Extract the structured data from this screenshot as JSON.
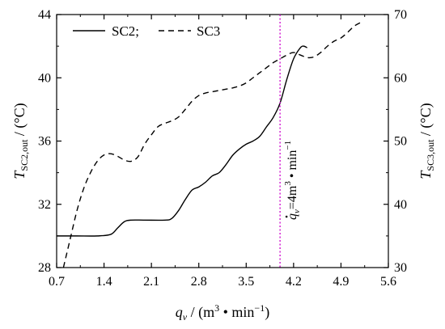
{
  "chart_data": {
    "type": "line",
    "x_ticks": [
      0.7,
      1.4,
      2.1,
      2.8,
      3.5,
      4.2,
      4.9,
      5.6
    ],
    "x_tick_labels": [
      "0.7",
      "1.4",
      "2.1",
      "2.8",
      "3.5",
      "4.2",
      "4.9",
      "5.6"
    ],
    "y_left_ticks": [
      28,
      32,
      36,
      40,
      44
    ],
    "y_left_tick_labels": [
      "28",
      "32",
      "36",
      "40",
      "44"
    ],
    "y_right_ticks": [
      30,
      40,
      50,
      60,
      70
    ],
    "y_right_tick_labels": [
      "30",
      "40",
      "50",
      "60",
      "70"
    ],
    "xlim": [
      0.7,
      5.6
    ],
    "ylim_left": [
      28,
      44
    ],
    "ylim_right": [
      30,
      70
    ],
    "grid": false,
    "legend_position": "top-left",
    "xlabel": {
      "var": "q",
      "sub": "v",
      "text": " / (m",
      "sup": "3",
      "text2": " • min",
      "sup2": "−1",
      "text3": ")"
    },
    "ylabel_left": {
      "var": "T",
      "sub": "SC2,out",
      "text": " / (°C)"
    },
    "ylabel_right": {
      "var": "T",
      "sub": "SC3,out",
      "text": " / (°C)"
    },
    "series": [
      {
        "name": "SC2;",
        "axis": "left",
        "style": "solid",
        "x": [
          0.7,
          1.0,
          1.3,
          1.5,
          1.6,
          1.7,
          1.8,
          2.0,
          2.3,
          2.4,
          2.5,
          2.6,
          2.7,
          2.8,
          2.9,
          3.0,
          3.1,
          3.2,
          3.3,
          3.4,
          3.5,
          3.6,
          3.7,
          3.8,
          3.9,
          4.0,
          4.1,
          4.2,
          4.3,
          4.35,
          4.4
        ],
        "y": [
          30.0,
          30.0,
          30.0,
          30.1,
          30.5,
          30.9,
          31.0,
          31.0,
          31.0,
          31.1,
          31.6,
          32.3,
          32.9,
          33.1,
          33.4,
          33.8,
          34.0,
          34.5,
          35.1,
          35.5,
          35.8,
          36.0,
          36.3,
          36.9,
          37.5,
          38.4,
          39.9,
          41.2,
          41.9,
          42.0,
          41.9
        ]
      },
      {
        "name": "SC3",
        "axis": "right",
        "style": "dashed",
        "x": [
          0.8,
          0.9,
          1.0,
          1.1,
          1.2,
          1.3,
          1.4,
          1.5,
          1.6,
          1.7,
          1.8,
          1.9,
          2.0,
          2.1,
          2.2,
          2.3,
          2.4,
          2.5,
          2.6,
          2.7,
          2.8,
          2.9,
          3.0,
          3.1,
          3.2,
          3.3,
          3.4,
          3.5,
          3.6,
          3.7,
          3.8,
          3.9,
          4.0,
          4.1,
          4.2,
          4.3,
          4.4,
          4.5,
          4.6,
          4.7,
          4.8,
          4.9,
          5.0,
          5.1,
          5.2
        ],
        "y": [
          30.0,
          34.5,
          39.0,
          42.5,
          45.0,
          46.8,
          47.8,
          48.0,
          47.6,
          47.0,
          46.8,
          47.5,
          49.5,
          51.0,
          52.3,
          52.8,
          53.2,
          53.8,
          55.0,
          56.3,
          57.2,
          57.6,
          57.8,
          58.0,
          58.2,
          58.4,
          58.7,
          59.2,
          60.0,
          60.8,
          61.6,
          62.4,
          63.0,
          63.6,
          64.0,
          63.6,
          63.2,
          63.3,
          64.0,
          65.0,
          65.8,
          66.3,
          67.2,
          68.2,
          68.8
        ]
      }
    ],
    "annotation": {
      "type": "vertical-line",
      "x": 4.0,
      "color": "#cc00cc",
      "style": "dotted",
      "label_var": "q",
      "label_sub": "v",
      "label_rest": "=4m",
      "label_sup": "3",
      "label_rest2": " • min",
      "label_sup2": "−1"
    }
  }
}
